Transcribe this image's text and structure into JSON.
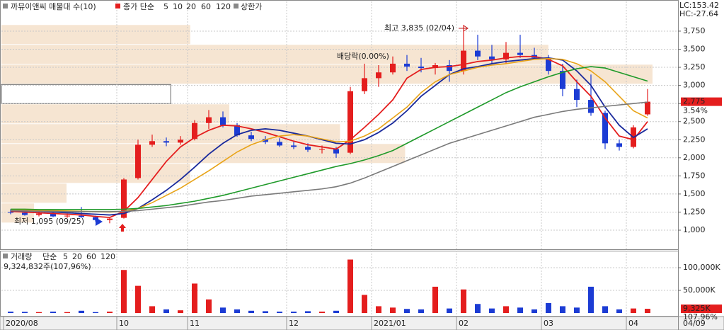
{
  "chart_data": [
    {
      "type": "candlestick",
      "title": "까뮤이앤씨 매물대 수(10)",
      "ma_label": "종가 단순",
      "limit_label": "상한가",
      "categories": [
        "2020/08",
        null,
        null,
        null,
        null,
        null,
        null,
        null,
        "10",
        null,
        null,
        null,
        null,
        "11",
        null,
        null,
        null,
        null,
        null,
        null,
        "12",
        null,
        null,
        null,
        null,
        null,
        "2021/01",
        null,
        null,
        null,
        null,
        null,
        "02",
        null,
        null,
        null,
        null,
        null,
        "03",
        null,
        null,
        null,
        null,
        null,
        "04",
        null
      ],
      "last_date": "04/09",
      "open": [
        1250,
        1240,
        1210,
        1230,
        1190,
        1200,
        1180,
        1140,
        1170,
        1720,
        2180,
        2230,
        2210,
        2260,
        2480,
        2560,
        2450,
        2310,
        2260,
        2220,
        2170,
        2150,
        2110,
        2120,
        2070,
        2920,
        3100,
        3180,
        3300,
        3260,
        3240,
        3280,
        3200,
        3480,
        3400,
        3360,
        3450,
        3420,
        3380,
        3200,
        2950,
        2800,
        2620,
        2200,
        2150,
        2600
      ],
      "high": [
        1290,
        1270,
        1260,
        1250,
        1230,
        1320,
        1200,
        1180,
        1720,
        2250,
        2320,
        2280,
        2300,
        2520,
        2660,
        2640,
        2480,
        2360,
        2300,
        2270,
        2220,
        2200,
        2170,
        2150,
        2980,
        3300,
        3280,
        3400,
        3420,
        3380,
        3310,
        3350,
        3835,
        3700,
        3560,
        3600,
        3700,
        3520,
        3420,
        3300,
        3080,
        3150,
        2650,
        2250,
        2450,
        2950
      ],
      "low": [
        1220,
        1200,
        1190,
        1180,
        1170,
        1170,
        1120,
        1095,
        1160,
        1700,
        2150,
        2160,
        2180,
        2240,
        2400,
        2420,
        2290,
        2230,
        2190,
        2150,
        2120,
        2080,
        2060,
        2000,
        2050,
        2880,
        2980,
        3150,
        3200,
        3180,
        3150,
        3050,
        3150,
        3350,
        3300,
        3300,
        3380,
        3360,
        3150,
        2850,
        2700,
        2580,
        2120,
        2100,
        2130,
        2580
      ],
      "close": [
        1240,
        1210,
        1230,
        1190,
        1200,
        1180,
        1140,
        1160,
        1700,
        2180,
        2230,
        2210,
        2250,
        2480,
        2560,
        2450,
        2310,
        2260,
        2220,
        2170,
        2150,
        2110,
        2120,
        2060,
        2920,
        3100,
        3180,
        3300,
        3260,
        3240,
        3280,
        3200,
        3480,
        3400,
        3360,
        3450,
        3420,
        3380,
        3200,
        2950,
        2800,
        2620,
        2200,
        2150,
        2420,
        2775
      ],
      "up_color": "#e41e1e",
      "down_color": "#1c3cd4",
      "series": [
        {
          "name": "5",
          "color": "#e41e1e",
          "values": [
            1260,
            1250,
            1240,
            1230,
            1220,
            1210,
            1190,
            1175,
            1260,
            1450,
            1700,
            1950,
            2150,
            2280,
            2380,
            2450,
            2440,
            2400,
            2350,
            2290,
            2230,
            2180,
            2150,
            2120,
            2250,
            2420,
            2600,
            2800,
            3100,
            3220,
            3250,
            3260,
            3290,
            3330,
            3350,
            3380,
            3400,
            3400,
            3360,
            3270,
            3050,
            2850,
            2550,
            2300,
            2250,
            2500
          ]
        },
        {
          "name": "10",
          "color": "#1a2a9c",
          "values": [
            1270,
            1265,
            1260,
            1250,
            1240,
            1230,
            1220,
            1210,
            1230,
            1300,
            1420,
            1550,
            1700,
            1870,
            2050,
            2200,
            2320,
            2380,
            2400,
            2380,
            2340,
            2300,
            2250,
            2200,
            2190,
            2250,
            2350,
            2480,
            2650,
            2850,
            3000,
            3150,
            3230,
            3260,
            3300,
            3330,
            3350,
            3370,
            3380,
            3350,
            3200,
            3000,
            2700,
            2450,
            2280,
            2400
          ]
        },
        {
          "name": "20",
          "color": "#e8a317",
          "values": [
            1280,
            1280,
            1275,
            1270,
            1265,
            1260,
            1255,
            1250,
            1260,
            1300,
            1380,
            1480,
            1580,
            1700,
            1820,
            1950,
            2080,
            2180,
            2250,
            2300,
            2320,
            2300,
            2260,
            2220,
            2230,
            2300,
            2400,
            2550,
            2700,
            2900,
            3050,
            3150,
            3200,
            3250,
            3280,
            3300,
            3330,
            3360,
            3370,
            3360,
            3300,
            3200,
            3050,
            2850,
            2650,
            2550
          ]
        },
        {
          "name": "60",
          "color": "#1f9a2a",
          "values": [
            1290,
            1290,
            1285,
            1285,
            1285,
            1285,
            1285,
            1285,
            1290,
            1300,
            1320,
            1340,
            1370,
            1400,
            1440,
            1480,
            1530,
            1580,
            1630,
            1680,
            1730,
            1780,
            1830,
            1880,
            1920,
            1970,
            2030,
            2100,
            2200,
            2300,
            2400,
            2500,
            2600,
            2700,
            2800,
            2900,
            2980,
            3050,
            3120,
            3180,
            3230,
            3260,
            3240,
            3180,
            3120,
            3060
          ]
        },
        {
          "name": "120",
          "color": "#7a7a7a",
          "values": [
            1270,
            1265,
            1260,
            1260,
            1255,
            1255,
            1255,
            1255,
            1260,
            1270,
            1290,
            1310,
            1330,
            1360,
            1390,
            1410,
            1440,
            1470,
            1490,
            1510,
            1530,
            1550,
            1570,
            1600,
            1650,
            1720,
            1800,
            1880,
            1960,
            2040,
            2120,
            2200,
            2260,
            2320,
            2380,
            2440,
            2500,
            2560,
            2600,
            2640,
            2670,
            2690,
            2710,
            2730,
            2750,
            2770
          ]
        }
      ],
      "ylim": [
        736,
        4180
      ],
      "yticks": [
        {
          "value": 1000,
          "label": "1,000"
        },
        {
          "value": 1250,
          "label": "1,250"
        },
        {
          "value": 1500,
          "label": "1,500"
        },
        {
          "value": 1750,
          "label": "1,750"
        },
        {
          "value": 2000,
          "label": "2,000"
        },
        {
          "value": 2250,
          "label": "2,250"
        },
        {
          "value": 2500,
          "label": "2,500"
        },
        {
          "value": 2750,
          "label": "2,750"
        },
        {
          "value": 3000,
          "label": "3,000"
        },
        {
          "value": 3250,
          "label": "3,250"
        },
        {
          "value": 3500,
          "label": "3,500"
        },
        {
          "value": 3750,
          "label": "3,750"
        }
      ],
      "grid": true,
      "volume_profile": {
        "bins": [
          1095,
          1369,
          1643,
          1917,
          2191,
          2465,
          2739,
          3013,
          3287,
          3561,
          3835
        ],
        "values": [
          5,
          10,
          29,
          62,
          52,
          35,
          26,
          100,
          84,
          29
        ],
        "highlight": 6,
        "color": "#f6e5d2"
      },
      "annotations": [
        "최고 3,835 (02/04)",
        "최저 1,095 (09/25)",
        "배당락(0.00%)"
      ],
      "indicators": [
        {
          "text": "LC:153.42",
          "color": "#e41e1e"
        },
        {
          "text": "HC:-27.64",
          "color": "#1c3cd4"
        }
      ],
      "last_close_label": "2,775",
      "change_label": "3.54%"
    },
    {
      "type": "bar",
      "title": "거래량",
      "ma_label": "단순",
      "ma_periods": [
        {
          "label": "5",
          "color": "#a020c0"
        },
        {
          "label": "20",
          "color": "#e8a317"
        },
        {
          "label": "60",
          "color": "#1f9a2a"
        },
        {
          "label": "120",
          "color": "#7a7a7a"
        }
      ],
      "subtitle": "9,324,832주(107,96%)",
      "values": [
        3000,
        2500,
        2000,
        3000,
        2000,
        5000,
        2000,
        3000,
        95000,
        60000,
        15000,
        8000,
        6000,
        65000,
        30000,
        12000,
        8000,
        5000,
        4000,
        3000,
        3000,
        4000,
        3000,
        5000,
        118000,
        40000,
        15000,
        12000,
        9000,
        8000,
        58000,
        10000,
        52000,
        20000,
        10000,
        15000,
        12000,
        8000,
        22000,
        15000,
        12000,
        58000,
        15000,
        8000,
        10000,
        9325
      ],
      "ylim": [
        -7800,
        136000
      ],
      "yticks": [
        {
          "value": 50000,
          "label": "50,000K"
        },
        {
          "value": 100000,
          "label": "100,000K"
        }
      ],
      "last_value_label": "9,325K",
      "ratio_label": "107.96%"
    }
  ]
}
